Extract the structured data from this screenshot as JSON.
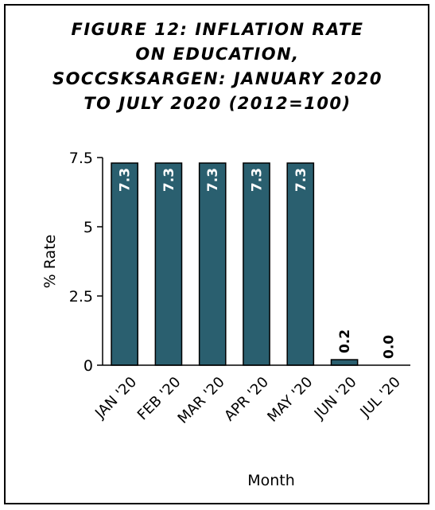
{
  "chart_data": {
    "type": "bar",
    "title_lines": [
      "FIGURE 12: INFLATION RATE",
      "ON EDUCATION,",
      "SOCCSKSARGEN: JANUARY 2020",
      "TO JULY 2020 (2012=100)"
    ],
    "categories": [
      "JAN '20",
      "FEB '20",
      "MAR '20",
      "APR '20",
      "MAY '20",
      "JUN '20",
      "JUL '20"
    ],
    "values": [
      7.3,
      7.3,
      7.3,
      7.3,
      7.3,
      0.2,
      0.0
    ],
    "data_labels": [
      "7.3",
      "7.3",
      "7.3",
      "7.3",
      "7.3",
      "0.2",
      "0.0"
    ],
    "xlabel": "Month",
    "ylabel": "% Rate",
    "ylim": [
      0,
      7.5
    ],
    "yticks": [
      "0",
      "2.5",
      "5",
      "7.5"
    ],
    "grid": false,
    "legend": "none",
    "colors": {
      "bar": "#2a5f6f",
      "bar_edge": "#000000",
      "label_inside": "#ffffff",
      "label_outside": "#000000"
    }
  }
}
